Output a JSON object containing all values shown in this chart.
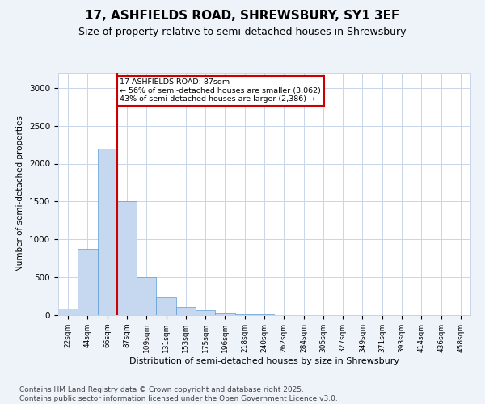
{
  "title1": "17, ASHFIELDS ROAD, SHREWSBURY, SY1 3EF",
  "title2": "Size of property relative to semi-detached houses in Shrewsbury",
  "xlabel": "Distribution of semi-detached houses by size in Shrewsbury",
  "ylabel": "Number of semi-detached properties",
  "categories": [
    "22sqm",
    "44sqm",
    "66sqm",
    "87sqm",
    "109sqm",
    "131sqm",
    "153sqm",
    "175sqm",
    "196sqm",
    "218sqm",
    "240sqm",
    "262sqm",
    "284sqm",
    "305sqm",
    "327sqm",
    "349sqm",
    "371sqm",
    "393sqm",
    "414sqm",
    "436sqm",
    "458sqm"
  ],
  "values": [
    87,
    870,
    2200,
    1500,
    500,
    230,
    110,
    60,
    30,
    15,
    8,
    3,
    1,
    0,
    0,
    0,
    0,
    0,
    0,
    0,
    0
  ],
  "bar_color": "#c5d8f0",
  "bar_edge_color": "#5b9bd5",
  "highlight_index": 3,
  "highlight_line_color": "#cc0000",
  "annotation_text": "17 ASHFIELDS ROAD: 87sqm\n← 56% of semi-detached houses are smaller (3,062)\n43% of semi-detached houses are larger (2,386) →",
  "annotation_box_color": "#ffffff",
  "annotation_box_edge": "#cc0000",
  "ylim": [
    0,
    3200
  ],
  "yticks": [
    0,
    500,
    1000,
    1500,
    2000,
    2500,
    3000
  ],
  "footer": "Contains HM Land Registry data © Crown copyright and database right 2025.\nContains public sector information licensed under the Open Government Licence v3.0.",
  "background_color": "#eef2f9",
  "plot_bg_color": "#ffffff",
  "grid_color": "#c8d4e8",
  "title1_fontsize": 11,
  "title2_fontsize": 9,
  "footer_fontsize": 6.5
}
